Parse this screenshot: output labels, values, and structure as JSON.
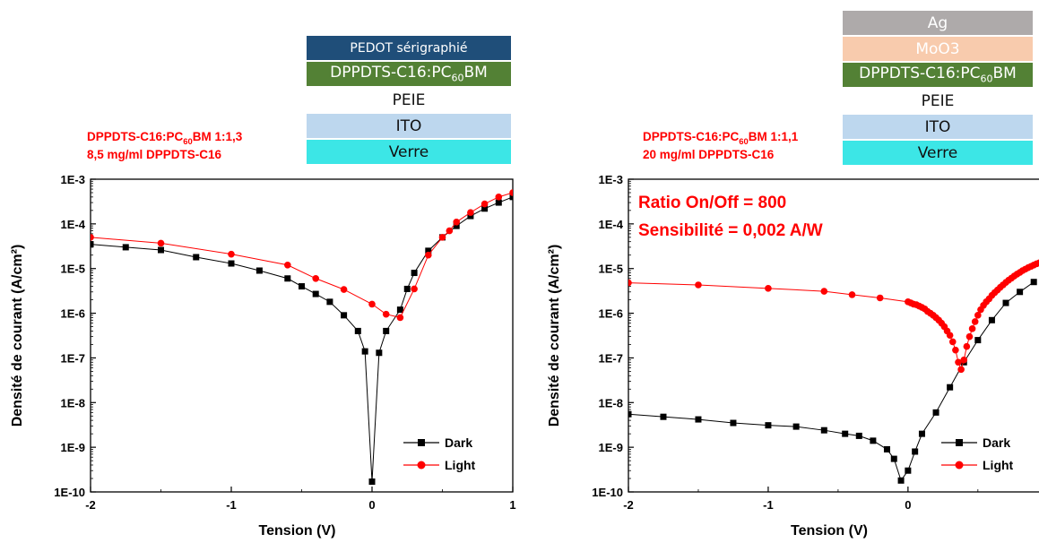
{
  "colors": {
    "dark_series": "#000000",
    "light_series": "#ff0000",
    "annotation": "#ff0000",
    "layer_pedot": "#1f4e79",
    "layer_active": "#538135",
    "layer_peie": "#ffffff",
    "layer_ito": "#bdd7ee",
    "layer_verre": "#3ce6e6",
    "layer_ag": "#aeaaaa",
    "layer_moo3": "#f8cbad"
  },
  "chart_data": [
    {
      "type": "line",
      "ylabel": "Densité de courant (A/cm²)",
      "xlabel": "Tension (V)",
      "xlim": [
        -2,
        1
      ],
      "ylim": [
        1e-10,
        0.001
      ],
      "y_scale": "log",
      "x_ticks": [
        "-2",
        "-1",
        "0",
        "1"
      ],
      "y_ticks": [
        "1E-10",
        "1E-9",
        "1E-8",
        "1E-7",
        "1E-6",
        "1E-5",
        "1E-4",
        "1E-3"
      ],
      "legend_position": "bottom-right",
      "annotation_lines": [
        {
          "prefix": "DPPDTS-C16:PC",
          "sub": "60",
          "suffix": "BM 1:1,3"
        },
        {
          "prefix": "8,5 mg/ml DPPDTS-C16",
          "sub": "",
          "suffix": ""
        }
      ],
      "stack": [
        {
          "label": "PEDOT sérigraphié",
          "color_key": "layer_pedot",
          "text_color": "#ffffff",
          "sub": "",
          "suffix": ""
        },
        {
          "label": "DPPDTS-C16:PC",
          "sub": "60",
          "suffix": "BM",
          "color_key": "layer_active",
          "text_color": "#ffffff"
        },
        {
          "label": "PEIE",
          "color_key": "layer_peie",
          "text_color": "#111111",
          "sub": "",
          "suffix": ""
        },
        {
          "label": "ITO",
          "color_key": "layer_ito",
          "text_color": "#111111",
          "sub": "",
          "suffix": ""
        },
        {
          "label": "Verre",
          "color_key": "layer_verre",
          "text_color": "#111111",
          "sub": "",
          "suffix": ""
        }
      ],
      "series": [
        {
          "name": "Dark",
          "marker": "square",
          "color_key": "dark_series",
          "x": [
            -2,
            -1.75,
            -1.5,
            -1.25,
            -1,
            -0.8,
            -0.6,
            -0.5,
            -0.4,
            -0.3,
            -0.2,
            -0.1,
            -0.05,
            0,
            0.05,
            0.1,
            0.2,
            0.25,
            0.3,
            0.4,
            0.5,
            0.6,
            0.7,
            0.8,
            0.9,
            1
          ],
          "y": [
            3.5e-05,
            3e-05,
            2.6e-05,
            1.8e-05,
            1.3e-05,
            9e-06,
            6e-06,
            4e-06,
            2.7e-06,
            1.8e-06,
            9e-07,
            4e-07,
            1.4e-07,
            1.7e-10,
            1.3e-07,
            4e-07,
            1.2e-06,
            3.5e-06,
            8e-06,
            2.5e-05,
            5e-05,
            9e-05,
            0.00015,
            0.00022,
            0.0003,
            0.0004
          ]
        },
        {
          "name": "Light",
          "marker": "circle",
          "color_key": "light_series",
          "x": [
            -2,
            -1.5,
            -1,
            -0.6,
            -0.4,
            -0.2,
            0,
            0.1,
            0.2,
            0.3,
            0.4,
            0.5,
            0.55,
            0.6,
            0.7,
            0.8,
            0.9,
            1
          ],
          "y": [
            5e-05,
            3.7e-05,
            2.1e-05,
            1.2e-05,
            6e-06,
            3.4e-06,
            1.6e-06,
            9.5e-07,
            8e-07,
            3.5e-06,
            2e-05,
            5e-05,
            7e-05,
            0.00011,
            0.00018,
            0.00028,
            0.0004,
            0.0005
          ]
        }
      ]
    },
    {
      "type": "line",
      "ylabel": "Densité de courant (A/cm²)",
      "xlabel": "Tension (V)",
      "xlim": [
        -2,
        0.95
      ],
      "ylim": [
        1e-10,
        0.001
      ],
      "y_scale": "log",
      "x_ticks": [
        "-2",
        "-1",
        "0"
      ],
      "y_ticks": [
        "1E-10",
        "1E-9",
        "1E-8",
        "1E-7",
        "1E-6",
        "1E-5",
        "1E-4",
        "1E-3"
      ],
      "legend_position": "bottom-right",
      "annotation_lines": [
        {
          "prefix": "DPPDTS-C16:PC",
          "sub": "60",
          "suffix": "BM 1:1,1"
        },
        {
          "prefix": "20 mg/ml DPPDTS-C16",
          "sub": "",
          "suffix": ""
        }
      ],
      "inside_annotations": [
        "Ratio On/Off = 800",
        "Sensibilité = 0,002 A/W"
      ],
      "stack": [
        {
          "label": "Ag",
          "color_key": "layer_ag",
          "text_color": "#ffffff",
          "sub": "",
          "suffix": ""
        },
        {
          "label": "MoO3",
          "color_key": "layer_moo3",
          "text_color": "#ffffff",
          "sub": "",
          "suffix": ""
        },
        {
          "label": "DPPDTS-C16:PC",
          "sub": "60",
          "suffix": "BM",
          "color_key": "layer_active",
          "text_color": "#ffffff"
        },
        {
          "label": "PEIE",
          "color_key": "layer_peie",
          "text_color": "#111111",
          "sub": "",
          "suffix": ""
        },
        {
          "label": "ITO",
          "color_key": "layer_ito",
          "text_color": "#111111",
          "sub": "",
          "suffix": ""
        },
        {
          "label": "Verre",
          "color_key": "layer_verre",
          "text_color": "#111111",
          "sub": "",
          "suffix": ""
        }
      ],
      "series": [
        {
          "name": "Dark",
          "marker": "square",
          "color_key": "dark_series",
          "x": [
            -2,
            -1.75,
            -1.5,
            -1.25,
            -1,
            -0.8,
            -0.6,
            -0.45,
            -0.35,
            -0.25,
            -0.15,
            -0.1,
            -0.05,
            0,
            0.05,
            0.1,
            0.2,
            0.3,
            0.4,
            0.5,
            0.6,
            0.7,
            0.8,
            0.9
          ],
          "y": [
            5.5e-09,
            4.8e-09,
            4.2e-09,
            3.5e-09,
            3.1e-09,
            2.9e-09,
            2.4e-09,
            2e-09,
            1.8e-09,
            1.4e-09,
            9e-10,
            5.5e-10,
            1.8e-10,
            3e-10,
            8e-10,
            2e-09,
            6e-09,
            2.2e-08,
            8e-08,
            2.5e-07,
            7e-07,
            1.7e-06,
            3e-06,
            5e-06
          ]
        },
        {
          "name": "Light",
          "marker": "circle",
          "color_key": "light_series",
          "x": [
            -2,
            -1.5,
            -1,
            -0.6,
            -0.4,
            -0.2,
            0,
            0.02,
            0.04,
            0.06,
            0.08,
            0.1,
            0.12,
            0.14,
            0.16,
            0.18,
            0.2,
            0.22,
            0.24,
            0.26,
            0.28,
            0.3,
            0.32,
            0.34,
            0.36,
            0.38,
            0.4,
            0.42,
            0.44,
            0.46,
            0.48,
            0.5,
            0.52,
            0.54,
            0.56,
            0.58,
            0.6,
            0.62,
            0.64,
            0.66,
            0.68,
            0.7,
            0.72,
            0.74,
            0.76,
            0.78,
            0.8,
            0.82,
            0.84,
            0.86,
            0.88,
            0.9,
            0.92,
            0.94
          ],
          "y": [
            4.8e-06,
            4.3e-06,
            3.6e-06,
            3.1e-06,
            2.6e-06,
            2.2e-06,
            1.8e-06,
            1.7e-06,
            1.6e-06,
            1.55e-06,
            1.45e-06,
            1.35e-06,
            1.25e-06,
            1.1e-06,
            1e-06,
            9e-07,
            8e-07,
            7e-07,
            6e-07,
            5e-07,
            4e-07,
            3.2e-07,
            2.3e-07,
            1.5e-07,
            8e-08,
            5.5e-08,
            9e-08,
            1.8e-07,
            3e-07,
            4.5e-07,
            6.5e-07,
            9e-07,
            1.2e-06,
            1.5e-06,
            1.8e-06,
            2.1e-06,
            2.5e-06,
            2.9e-06,
            3.3e-06,
            3.8e-06,
            4.3e-06,
            4.9e-06,
            5.5e-06,
            6.1e-06,
            6.8e-06,
            7.5e-06,
            8.2e-06,
            9e-06,
            9.7e-06,
            1.05e-05,
            1.12e-05,
            1.2e-05,
            1.28e-05,
            1.35e-05
          ]
        }
      ]
    }
  ]
}
